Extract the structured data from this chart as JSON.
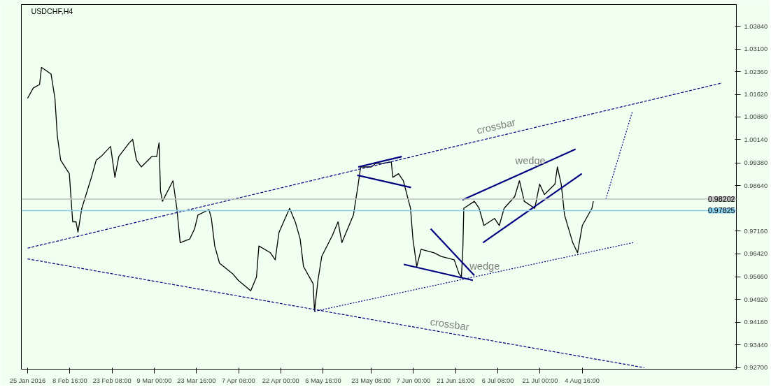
{
  "chart_data": {
    "type": "line",
    "title": "USDCHF,H4",
    "xlim": [
      "2016-01-22T20:00",
      "2016-09-27T04:00"
    ],
    "ylim": [
      0.9265,
      1.0455
    ],
    "xticks": [
      {
        "value": "2016-01-25T00:00",
        "label": "25 Jan 2016"
      },
      {
        "value": "2016-02-08T16:00",
        "label": "8 Feb 16:00"
      },
      {
        "value": "2016-02-23T08:00",
        "label": "23 Feb 08:00"
      },
      {
        "value": "2016-03-09T00:00",
        "label": "9 Mar 00:00"
      },
      {
        "value": "2016-03-23T16:00",
        "label": "23 Mar 16:00"
      },
      {
        "value": "2016-04-07T08:00",
        "label": "7 Apr 08:00"
      },
      {
        "value": "2016-04-22T00:00",
        "label": "22 Apr 00:00"
      },
      {
        "value": "2016-05-06T16:00",
        "label": "6 May 16:00"
      },
      {
        "value": "2016-05-23T08:00",
        "label": "23 May 08:00"
      },
      {
        "value": "2016-06-07T00:00",
        "label": "7 Jun 00:00"
      },
      {
        "value": "2016-06-21T16:00",
        "label": "21 Jun 16:00"
      },
      {
        "value": "2016-07-06T08:00",
        "label": "6 Jul 08:00"
      },
      {
        "value": "2016-07-21T00:00",
        "label": "21 Jul 00:00"
      },
      {
        "value": "2016-08-04T16:00",
        "label": "4 Aug 16:00"
      }
    ],
    "yticks": [
      {
        "value": 0.927,
        "label": "0.92700"
      },
      {
        "value": 0.9344,
        "label": "0.93440"
      },
      {
        "value": 0.9418,
        "label": "0.94180"
      },
      {
        "value": 0.9492,
        "label": "0.94920"
      },
      {
        "value": 0.9566,
        "label": "0.95660"
      },
      {
        "value": 0.9642,
        "label": "0.96420"
      },
      {
        "value": 0.9716,
        "label": "0.97160"
      },
      {
        "value": 0.9864,
        "label": "0.98640"
      },
      {
        "value": 0.9938,
        "label": "0.99380"
      },
      {
        "value": 1.0014,
        "label": "1.00140"
      },
      {
        "value": 1.0088,
        "label": "1.00880"
      },
      {
        "value": 1.0162,
        "label": "1.01620"
      },
      {
        "value": 1.0236,
        "label": "1.02360"
      },
      {
        "value": 1.031,
        "label": "1.03100"
      },
      {
        "value": 1.0384,
        "label": "1.03840"
      }
    ],
    "grid": false,
    "marker": "none",
    "series": [
      {
        "color": "#000000",
        "line_style": "solid",
        "x": [
          "2016-01-25T00:00",
          "2016-01-27T00:00",
          "2016-01-29T04:00",
          "2016-01-29T20:00",
          "2016-02-02T04:00",
          "2016-02-03T12:00",
          "2016-02-04T08:00",
          "2016-02-05T12:00",
          "2016-02-08T12:00",
          "2016-02-09T16:00",
          "2016-02-10T20:00",
          "2016-02-11T12:00",
          "2016-02-12T20:00",
          "2016-02-16T04:00",
          "2016-02-17T20:00",
          "2016-02-19T12:00",
          "2016-02-22T20:00",
          "2016-02-24T08:00",
          "2016-02-25T16:00",
          "2016-02-29T08:00",
          "2016-03-01T12:00",
          "2016-03-02T20:00",
          "2016-03-04T12:00",
          "2016-03-08T04:00",
          "2016-03-09T20:00",
          "2016-03-10T16:00",
          "2016-03-11T04:00",
          "2016-03-11T20:00",
          "2016-03-15T12:00",
          "2016-03-16T20:00",
          "2016-03-18T00:00",
          "2016-03-21T08:00",
          "2016-03-23T00:00",
          "2016-03-24T04:00",
          "2016-03-28T00:00",
          "2016-03-28T20:00",
          "2016-03-30T00:00",
          "2016-03-31T16:00",
          "2016-04-05T04:00",
          "2016-04-07T04:00",
          "2016-04-11T12:00",
          "2016-04-13T12:00",
          "2016-04-14T08:00",
          "2016-04-18T08:00",
          "2016-04-20T00:00",
          "2016-04-21T08:00",
          "2016-04-25T00:00",
          "2016-04-27T00:00",
          "2016-04-28T16:00",
          "2016-04-29T20:00",
          "2016-05-03T04:00",
          "2016-05-03T16:00",
          "2016-05-04T20:00",
          "2016-05-06T04:00",
          "2016-05-09T20:00",
          "2016-05-11T20:00",
          "2016-05-13T04:00",
          "2016-05-17T04:00",
          "2016-05-18T20:00",
          "2016-05-19T16:00",
          "2016-05-23T08:00",
          "2016-05-25T00:00",
          "2016-05-26T16:00",
          "2016-05-30T08:00",
          "2016-05-30T20:00",
          "2016-06-01T20:00",
          "2016-06-03T12:00",
          "2016-06-06T00:00",
          "2016-06-06T20:00",
          "2016-06-08T04:00",
          "2016-06-09T16:00",
          "2016-06-14T04:00",
          "2016-06-16T16:00",
          "2016-06-21T04:00",
          "2016-06-22T20:00",
          "2016-06-23T16:00",
          "2016-06-24T04:00",
          "2016-06-24T12:00",
          "2016-06-28T04:00",
          "2016-06-29T20:00",
          "2016-07-01T12:00",
          "2016-07-05T04:00",
          "2016-07-06T20:00",
          "2016-07-08T12:00",
          "2016-07-12T04:00",
          "2016-07-13T20:00",
          "2016-07-15T12:00",
          "2016-07-19T04:00",
          "2016-07-20T20:00",
          "2016-07-22T12:00",
          "2016-07-26T04:00",
          "2016-07-27T00:00",
          "2016-07-28T08:00",
          "2016-07-29T12:00",
          "2016-08-01T08:00",
          "2016-08-03T00:00",
          "2016-08-04T16:00",
          "2016-08-08T00:00",
          "2016-08-08T12:00"
        ],
        "values": [
          1.0149,
          1.0183,
          1.0194,
          1.025,
          1.0228,
          1.0149,
          1.0026,
          0.9947,
          0.9903,
          0.9746,
          0.9746,
          0.9712,
          0.979,
          0.9891,
          0.9947,
          0.9959,
          0.9992,
          0.9891,
          0.9959,
          1.0004,
          1.0015,
          0.9947,
          0.9925,
          0.9959,
          0.9959,
          1.0004,
          0.9847,
          0.9813,
          0.988,
          0.979,
          0.9678,
          0.969,
          0.9723,
          0.9768,
          0.9786,
          0.9757,
          0.9667,
          0.9611,
          0.9577,
          0.9555,
          0.9521,
          0.9566,
          0.9667,
          0.9645,
          0.9622,
          0.9712,
          0.979,
          0.9745,
          0.969,
          0.96,
          0.9544,
          0.9454,
          0.9554,
          0.9633,
          0.9701,
          0.9746,
          0.9678,
          0.9768,
          0.9869,
          0.9925,
          0.9925,
          0.9937,
          0.9936,
          0.9941,
          0.9891,
          0.9903,
          0.988,
          0.979,
          0.969,
          0.96,
          0.9656,
          0.9645,
          0.9633,
          0.9622,
          0.9577,
          0.9566,
          0.9656,
          0.979,
          0.9813,
          0.979,
          0.9734,
          0.9757,
          0.9734,
          0.979,
          0.9828,
          0.988,
          0.9813,
          0.979,
          0.9869,
          0.9835,
          0.9869,
          0.9925,
          0.9869,
          0.9768,
          0.9678,
          0.9645,
          0.9734,
          0.979,
          0.9813
        ]
      },
      {
        "color": "#000080",
        "line_style": "dashed",
        "x": [
          "2016-01-25T00:00",
          "2016-09-22T04:00"
        ],
        "values": [
          0.966,
          1.0199
        ]
      },
      {
        "color": "#000080",
        "line_style": "dashed",
        "x": [
          "2016-01-25T00:00",
          "2016-08-26T04:00"
        ],
        "values": [
          0.9625,
          0.927
        ]
      },
      {
        "color": "#000080",
        "line_style": "dotted",
        "x": [
          "2016-05-03T16:00",
          "2016-08-22T08:00"
        ],
        "values": [
          0.9454,
          0.9678
        ]
      },
      {
        "color": "#000080",
        "line_style": "dotted",
        "x": [
          "2016-08-12T20:00",
          "2016-08-22T00:00"
        ],
        "values": [
          0.982,
          1.0104
        ]
      },
      {
        "color": "#000080",
        "line_style": "solid",
        "x": [
          "2016-05-18T20:00",
          "2016-06-03T00:00"
        ],
        "values": [
          0.9925,
          0.9959
        ]
      },
      {
        "color": "#000080",
        "line_style": "solid",
        "x": [
          "2016-05-18T12:00",
          "2016-06-06T04:00"
        ],
        "values": [
          0.9898,
          0.9858
        ]
      },
      {
        "color": "#000080",
        "line_style": "solid",
        "x": [
          "2016-06-13T00:00",
          "2016-06-28T04:00"
        ],
        "values": [
          0.9723,
          0.9571
        ]
      },
      {
        "color": "#000080",
        "line_style": "solid",
        "x": [
          "2016-06-03T16:00",
          "2016-06-27T16:00"
        ],
        "values": [
          0.9607,
          0.9555
        ]
      },
      {
        "color": "#000080",
        "line_style": "solid",
        "x": [
          "2016-06-24T00:00",
          "2016-08-02T08:00"
        ],
        "values": [
          0.9817,
          0.9983
        ]
      },
      {
        "color": "#000080",
        "line_style": "solid",
        "x": [
          "2016-07-01T04:00",
          "2016-08-04T12:00"
        ],
        "values": [
          0.9678,
          0.9903
        ]
      }
    ],
    "ref_lines": [
      {
        "axis": "y",
        "value": 0.98202,
        "label": "0.98202",
        "color": "#c0c0c0"
      },
      {
        "axis": "y",
        "value": 0.97825,
        "label": "0.97825",
        "color": "#87ceeb"
      }
    ],
    "annotations": [
      "crossbar",
      "crossbar",
      "wedge",
      "wedge"
    ]
  }
}
